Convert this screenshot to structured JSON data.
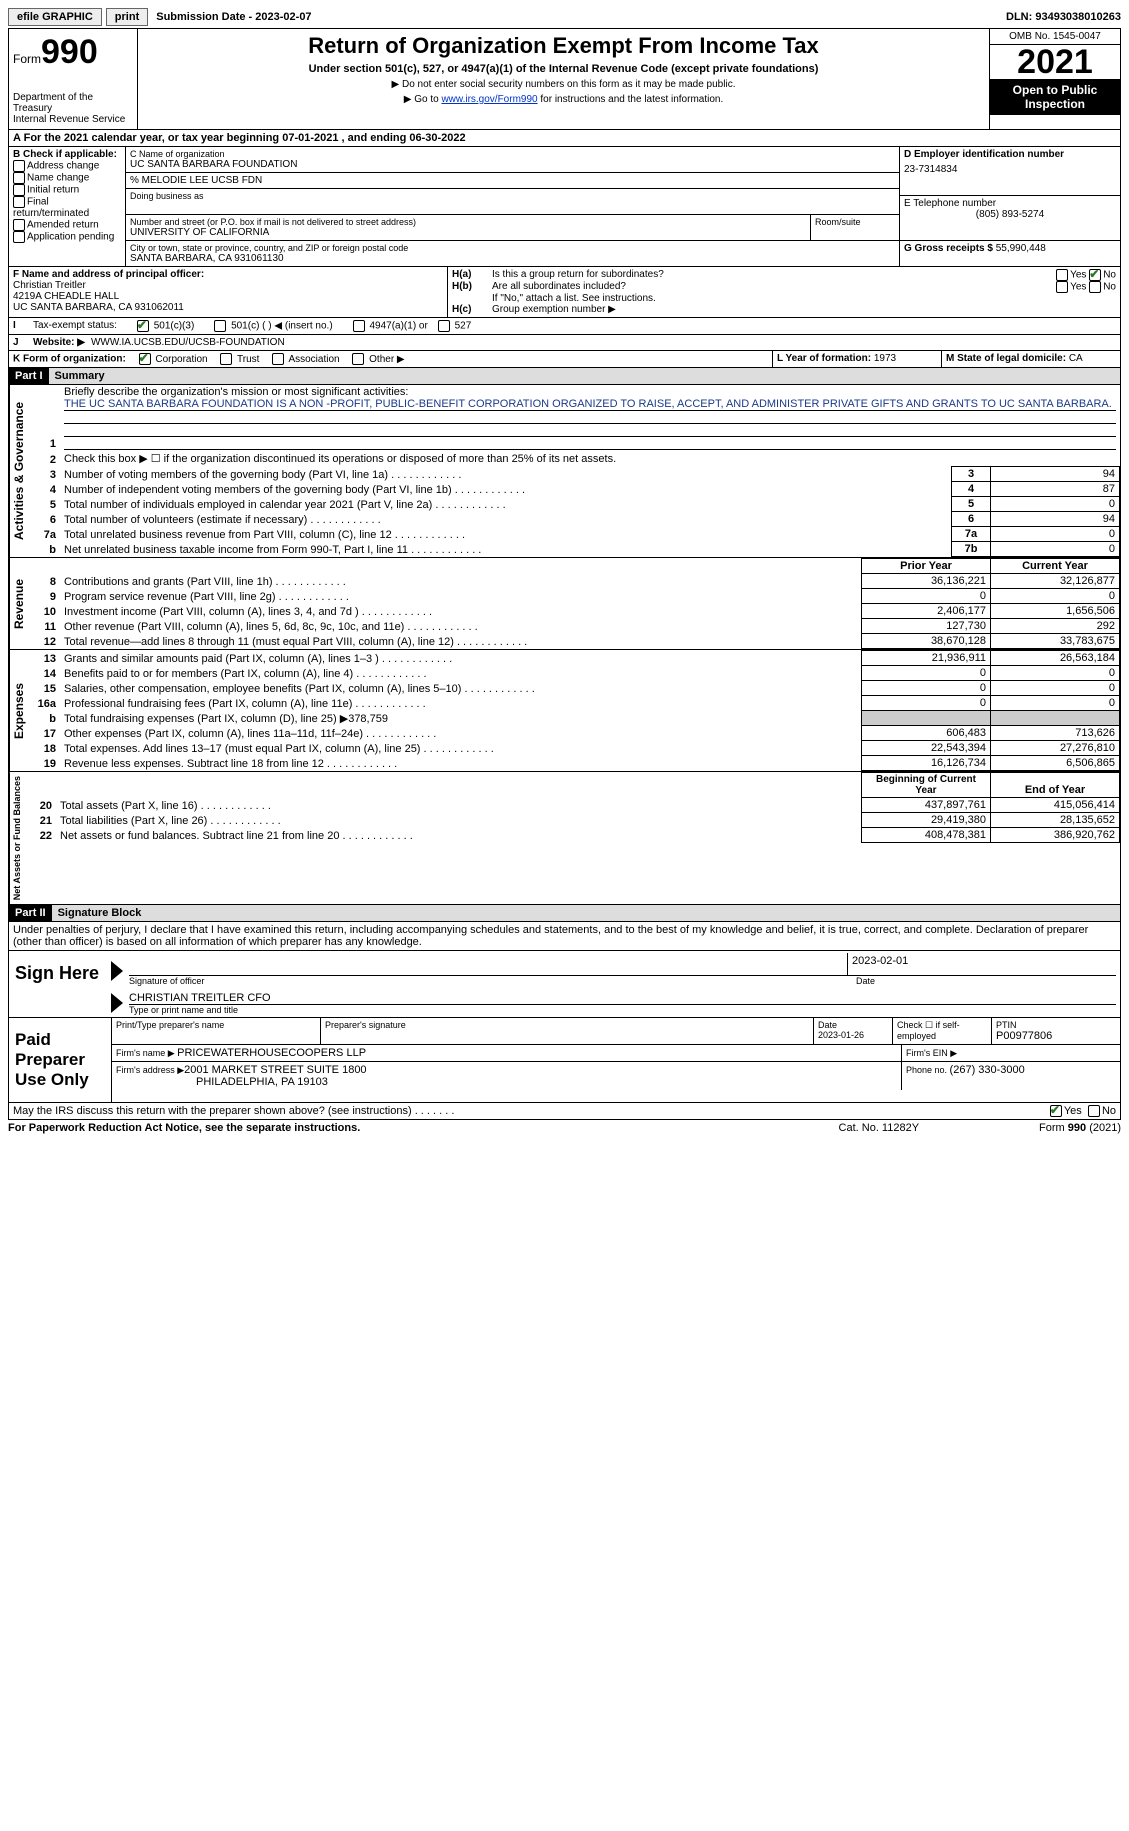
{
  "topbar": {
    "efile": "efile GRAPHIC",
    "print": "print",
    "subdate_label": "Submission Date - ",
    "subdate": "2023-02-07",
    "dln_label": "DLN: ",
    "dln": "93493038010263"
  },
  "header": {
    "form_word": "Form",
    "form_num": "990",
    "dept": "Department of the Treasury",
    "irs": "Internal Revenue Service",
    "title": "Return of Organization Exempt From Income Tax",
    "subtitle": "Under section 501(c), 527, or 4947(a)(1) of the Internal Revenue Code (except private foundations)",
    "note1": "▶ Do not enter social security numbers on this form as it may be made public.",
    "note2_pre": "▶ Go to ",
    "note2_link": "www.irs.gov/Form990",
    "note2_post": " for instructions and the latest information.",
    "omb": "OMB No. 1545-0047",
    "year": "2021",
    "open": "Open to Public Inspection"
  },
  "periodA": {
    "text_pre": "For the 2021 calendar year, or tax year beginning ",
    "begin": "07-01-2021",
    "mid": " , and ending ",
    "end": "06-30-2022"
  },
  "blockB": {
    "label": "B Check if applicable:",
    "opts": [
      "Address change",
      "Name change",
      "Initial return",
      "Final return/terminated",
      "Amended return",
      "Application pending"
    ]
  },
  "blockC": {
    "label": "C Name of organization",
    "name": "UC SANTA BARBARA FOUNDATION",
    "care_of": "% MELODIE LEE UCSB FDN",
    "dba_label": "Doing business as",
    "addr_label": "Number and street (or P.O. box if mail is not delivered to street address)",
    "room_label": "Room/suite",
    "addr": "UNIVERSITY OF CALIFORNIA",
    "city_label": "City or town, state or province, country, and ZIP or foreign postal code",
    "city": "SANTA BARBARA, CA  931061130"
  },
  "blockD": {
    "label": "D Employer identification number",
    "val": "23-7314834"
  },
  "blockE": {
    "label": "E Telephone number",
    "val": "(805) 893-5274"
  },
  "blockG": {
    "label": "G Gross receipts $ ",
    "val": "55,990,448"
  },
  "blockF": {
    "label": "F Name and address of principal officer:",
    "name": "Christian Treitler",
    "addr1": "4219A CHEADLE HALL",
    "addr2": "UC SANTA BARBARA, CA  931062011"
  },
  "blockH": {
    "a": "Is this a group return for subordinates?",
    "b": "Are all subordinates included?",
    "b_note": "If \"No,\" attach a list. See instructions.",
    "c": "Group exemption number ▶"
  },
  "blockI": {
    "label": "Tax-exempt status:",
    "o1": "501(c)(3)",
    "o2": "501(c) (  ) ◀ (insert no.)",
    "o3": "4947(a)(1) or",
    "o4": "527"
  },
  "blockJ": {
    "label": "Website: ▶",
    "val": "WWW.IA.UCSB.EDU/UCSB-FOUNDATION"
  },
  "blockK": {
    "label": "K Form of organization:",
    "o1": "Corporation",
    "o2": "Trust",
    "o3": "Association",
    "o4": "Other ▶"
  },
  "blockL": {
    "label": "L Year of formation: ",
    "val": "1973"
  },
  "blockM": {
    "label": "M State of legal domicile: ",
    "val": "CA"
  },
  "part1": {
    "num": "Part I",
    "title": "Summary"
  },
  "mission": {
    "q": "Briefly describe the organization's mission or most significant activities:",
    "text": "THE UC SANTA BARBARA FOUNDATION IS A NON -PROFIT, PUBLIC-BENEFIT CORPORATION ORGANIZED TO RAISE, ACCEPT, AND ADMINISTER PRIVATE GIFTS AND GRANTS TO UC SANTA BARBARA."
  },
  "lines_gov": [
    {
      "n": "2",
      "t": "Check this box ▶ ☐ if the organization discontinued its operations or disposed of more than 25% of its net assets."
    },
    {
      "n": "3",
      "t": "Number of voting members of the governing body (Part VI, line 1a)",
      "b": "3",
      "v": "94"
    },
    {
      "n": "4",
      "t": "Number of independent voting members of the governing body (Part VI, line 1b)",
      "b": "4",
      "v": "87"
    },
    {
      "n": "5",
      "t": "Total number of individuals employed in calendar year 2021 (Part V, line 2a)",
      "b": "5",
      "v": "0"
    },
    {
      "n": "6",
      "t": "Total number of volunteers (estimate if necessary)",
      "b": "6",
      "v": "94"
    },
    {
      "n": "7a",
      "t": "Total unrelated business revenue from Part VIII, column (C), line 12",
      "b": "7a",
      "v": "0"
    },
    {
      "n": "b",
      "t": "Net unrelated business taxable income from Form 990-T, Part I, line 11",
      "b": "7b",
      "v": "0"
    }
  ],
  "col_hdr": {
    "prior": "Prior Year",
    "current": "Current Year"
  },
  "lines_rev": [
    {
      "n": "8",
      "t": "Contributions and grants (Part VIII, line 1h)",
      "p": "36,136,221",
      "c": "32,126,877"
    },
    {
      "n": "9",
      "t": "Program service revenue (Part VIII, line 2g)",
      "p": "0",
      "c": "0"
    },
    {
      "n": "10",
      "t": "Investment income (Part VIII, column (A), lines 3, 4, and 7d )",
      "p": "2,406,177",
      "c": "1,656,506"
    },
    {
      "n": "11",
      "t": "Other revenue (Part VIII, column (A), lines 5, 6d, 8c, 9c, 10c, and 11e)",
      "p": "127,730",
      "c": "292"
    },
    {
      "n": "12",
      "t": "Total revenue—add lines 8 through 11 (must equal Part VIII, column (A), line 12)",
      "p": "38,670,128",
      "c": "33,783,675"
    }
  ],
  "lines_exp": [
    {
      "n": "13",
      "t": "Grants and similar amounts paid (Part IX, column (A), lines 1–3 )",
      "p": "21,936,911",
      "c": "26,563,184"
    },
    {
      "n": "14",
      "t": "Benefits paid to or for members (Part IX, column (A), line 4)",
      "p": "0",
      "c": "0"
    },
    {
      "n": "15",
      "t": "Salaries, other compensation, employee benefits (Part IX, column (A), lines 5–10)",
      "p": "0",
      "c": "0"
    },
    {
      "n": "16a",
      "t": "Professional fundraising fees (Part IX, column (A), line 11e)",
      "p": "0",
      "c": "0"
    },
    {
      "n": "b",
      "t": "Total fundraising expenses (Part IX, column (D), line 25) ▶378,759",
      "shade": true
    },
    {
      "n": "17",
      "t": "Other expenses (Part IX, column (A), lines 11a–11d, 11f–24e)",
      "p": "606,483",
      "c": "713,626"
    },
    {
      "n": "18",
      "t": "Total expenses. Add lines 13–17 (must equal Part IX, column (A), line 25)",
      "p": "22,543,394",
      "c": "27,276,810"
    },
    {
      "n": "19",
      "t": "Revenue less expenses. Subtract line 18 from line 12",
      "p": "16,126,734",
      "c": "6,506,865"
    }
  ],
  "col_hdr2": {
    "prior": "Beginning of Current Year",
    "current": "End of Year"
  },
  "lines_net": [
    {
      "n": "20",
      "t": "Total assets (Part X, line 16)",
      "p": "437,897,761",
      "c": "415,056,414"
    },
    {
      "n": "21",
      "t": "Total liabilities (Part X, line 26)",
      "p": "29,419,380",
      "c": "28,135,652"
    },
    {
      "n": "22",
      "t": "Net assets or fund balances. Subtract line 21 from line 20",
      "p": "408,478,381",
      "c": "386,920,762"
    }
  ],
  "vlabels": {
    "gov": "Activities & Governance",
    "rev": "Revenue",
    "exp": "Expenses",
    "net": "Net Assets or Fund Balances"
  },
  "part2": {
    "num": "Part II",
    "title": "Signature Block"
  },
  "perjury": "Under penalties of perjury, I declare that I have examined this return, including accompanying schedules and statements, and to the best of my knowledge and belief, it is true, correct, and complete. Declaration of preparer (other than officer) is based on all information of which preparer has any knowledge.",
  "sign": {
    "here": "Sign Here",
    "sig_label": "Signature of officer",
    "date_label": "Date",
    "date": "2023-02-01",
    "name": "CHRISTIAN TREITLER CFO",
    "name_label": "Type or print name and title"
  },
  "paid": {
    "label": "Paid Preparer Use Only",
    "pt_name_label": "Print/Type preparer's name",
    "sig_label": "Preparer's signature",
    "date_label": "Date",
    "date": "2023-01-26",
    "check_label": "Check ☐ if self-employed",
    "ptin_label": "PTIN",
    "ptin": "P00977806",
    "firm_name_label": "Firm's name   ▶ ",
    "firm_name": "PRICEWATERHOUSECOOPERS LLP",
    "firm_ein_label": "Firm's EIN ▶",
    "firm_addr_label": "Firm's address ▶",
    "firm_addr1": "2001 MARKET STREET SUITE 1800",
    "firm_addr2": "PHILADELPHIA, PA  19103",
    "phone_label": "Phone no. ",
    "phone": "(267) 330-3000"
  },
  "discuss": "May the IRS discuss this return with the preparer shown above? (see instructions)",
  "footer": {
    "left": "For Paperwork Reduction Act Notice, see the separate instructions.",
    "mid": "Cat. No. 11282Y",
    "right": "Form 990 (2021)"
  },
  "yesno": {
    "yes": "Yes",
    "no": "No"
  }
}
